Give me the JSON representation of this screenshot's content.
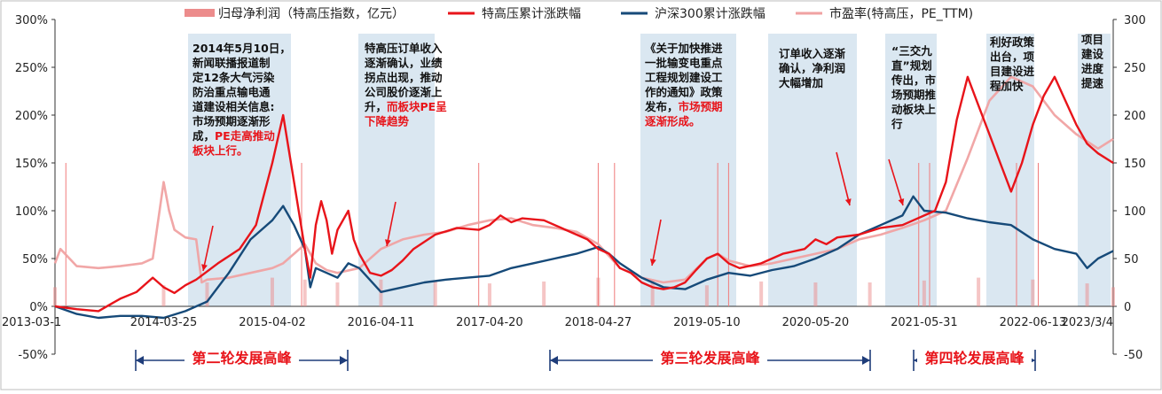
{
  "chart_data": {
    "type": "line",
    "left_axis": {
      "ticks": [
        "300%",
        "250%",
        "200%",
        "150%",
        "100%",
        "50%",
        "0%",
        "-50%"
      ],
      "min": -50,
      "max": 300,
      "unit": "%"
    },
    "right_axis": {
      "ticks": [
        "300",
        "250",
        "200",
        "150",
        "100",
        "50",
        "0",
        "-50"
      ],
      "min": -50,
      "max": 300
    },
    "x_ticks": [
      {
        "label": "2013-03-1",
        "x": 0.0
      },
      {
        "label": "2014-03-25",
        "x": 1.0
      },
      {
        "label": "2015-04-02",
        "x": 2.0
      },
      {
        "label": "2016-04-11",
        "x": 3.0
      },
      {
        "label": "2017-04-20",
        "x": 4.0
      },
      {
        "label": "2018-04-27",
        "x": 5.0
      },
      {
        "label": "2019-05-10",
        "x": 6.0
      },
      {
        "label": "2020-05-20",
        "x": 7.0
      },
      {
        "label": "2021-05-31",
        "x": 8.0
      },
      {
        "label": "2022-06-13",
        "x": 9.0
      },
      {
        "label": "2023/3/4",
        "x": 9.74
      }
    ],
    "x_range": [
      0,
      9.74
    ],
    "legend": [
      {
        "name": "归母净利润（特高压指数，亿元）",
        "type": "bar",
        "color": "#ec8c8c"
      },
      {
        "name": "特高压累计涨跌幅",
        "type": "line",
        "color": "#e8141a"
      },
      {
        "name": "沪深300累计涨跌幅",
        "type": "line",
        "color": "#164a79"
      },
      {
        "name": "市盈率(特高压，PE_TTM)",
        "type": "line",
        "color": "#f0a2a2"
      }
    ],
    "series": [
      {
        "name": "特高压累计涨跌幅",
        "axis": "left",
        "color": "#e8141a",
        "x": [
          0,
          0.2,
          0.4,
          0.6,
          0.75,
          0.9,
          1.0,
          1.1,
          1.2,
          1.3,
          1.5,
          1.7,
          1.85,
          2.0,
          2.1,
          2.2,
          2.3,
          2.35,
          2.4,
          2.45,
          2.5,
          2.55,
          2.6,
          2.7,
          2.75,
          2.8,
          2.9,
          3.0,
          3.1,
          3.2,
          3.3,
          3.5,
          3.7,
          3.9,
          4.0,
          4.1,
          4.2,
          4.3,
          4.5,
          4.7,
          4.9,
          5.0,
          5.1,
          5.2,
          5.3,
          5.4,
          5.5,
          5.6,
          5.7,
          5.8,
          5.9,
          6.0,
          6.1,
          6.2,
          6.3,
          6.5,
          6.7,
          6.9,
          7.0,
          7.1,
          7.2,
          7.4,
          7.6,
          7.8,
          7.9,
          8.0,
          8.1,
          8.2,
          8.3,
          8.4,
          8.5,
          8.6,
          8.7,
          8.8,
          8.9,
          9.0,
          9.1,
          9.2,
          9.3,
          9.4,
          9.5,
          9.6,
          9.74
        ],
        "y": [
          0,
          -3,
          -5,
          8,
          15,
          30,
          20,
          14,
          22,
          28,
          45,
          60,
          85,
          150,
          200,
          130,
          60,
          30,
          85,
          110,
          90,
          55,
          80,
          100,
          70,
          55,
          35,
          32,
          38,
          48,
          60,
          75,
          82,
          80,
          85,
          95,
          88,
          92,
          90,
          80,
          70,
          60,
          55,
          40,
          35,
          25,
          20,
          18,
          20,
          25,
          38,
          50,
          55,
          45,
          40,
          45,
          55,
          60,
          70,
          65,
          72,
          75,
          82,
          85,
          90,
          95,
          100,
          130,
          195,
          240,
          210,
          180,
          150,
          120,
          150,
          190,
          220,
          240,
          215,
          190,
          170,
          160,
          150
        ]
      },
      {
        "name": "沪深300累计涨跌幅",
        "axis": "left",
        "color": "#164a79",
        "x": [
          0,
          0.2,
          0.4,
          0.6,
          0.8,
          1.0,
          1.2,
          1.4,
          1.6,
          1.8,
          2.0,
          2.1,
          2.2,
          2.3,
          2.35,
          2.4,
          2.5,
          2.6,
          2.7,
          2.8,
          3.0,
          3.2,
          3.4,
          3.6,
          3.8,
          4.0,
          4.2,
          4.4,
          4.6,
          4.8,
          5.0,
          5.1,
          5.2,
          5.4,
          5.6,
          5.8,
          6.0,
          6.2,
          6.4,
          6.6,
          6.8,
          7.0,
          7.2,
          7.4,
          7.6,
          7.8,
          7.9,
          8.0,
          8.2,
          8.4,
          8.6,
          8.8,
          9.0,
          9.2,
          9.4,
          9.5,
          9.6,
          9.74
        ],
        "y": [
          0,
          -8,
          -12,
          -10,
          -10,
          -12,
          -5,
          5,
          35,
          70,
          90,
          105,
          85,
          60,
          20,
          40,
          35,
          30,
          45,
          40,
          15,
          20,
          25,
          28,
          30,
          32,
          40,
          45,
          50,
          55,
          62,
          55,
          45,
          30,
          20,
          18,
          28,
          35,
          32,
          38,
          42,
          50,
          60,
          75,
          85,
          95,
          115,
          100,
          98,
          92,
          88,
          85,
          70,
          60,
          55,
          40,
          50,
          58
        ]
      },
      {
        "name": "市盈率(特高压，PE_TTM)",
        "axis": "right",
        "color": "#f0a2a2",
        "x": [
          0,
          0.05,
          0.2,
          0.4,
          0.6,
          0.8,
          0.9,
          1.0,
          1.05,
          1.1,
          1.2,
          1.3,
          1.35,
          1.4,
          1.6,
          1.8,
          2.0,
          2.1,
          2.2,
          2.3,
          2.4,
          2.5,
          2.6,
          2.8,
          3.0,
          3.2,
          3.4,
          3.6,
          3.8,
          4.0,
          4.2,
          4.4,
          4.6,
          4.8,
          5.0,
          5.2,
          5.4,
          5.6,
          5.8,
          6.0,
          6.1,
          6.2,
          6.4,
          6.6,
          6.8,
          7.0,
          7.2,
          7.4,
          7.6,
          7.8,
          8.0,
          8.2,
          8.4,
          8.6,
          8.8,
          9.0,
          9.2,
          9.4,
          9.6,
          9.74
        ],
        "y": [
          45,
          60,
          42,
          40,
          42,
          45,
          50,
          130,
          100,
          80,
          72,
          70,
          25,
          28,
          30,
          35,
          40,
          45,
          55,
          65,
          45,
          38,
          35,
          40,
          60,
          70,
          75,
          78,
          85,
          90,
          92,
          85,
          82,
          78,
          65,
          40,
          30,
          25,
          28,
          50,
          55,
          48,
          42,
          45,
          50,
          55,
          60,
          70,
          75,
          82,
          90,
          100,
          155,
          215,
          240,
          230,
          200,
          180,
          165,
          175
        ]
      },
      {
        "name": "归母净利润（特高压指数，亿元）",
        "axis": "right",
        "color": "#ec8c8c",
        "x": [
          0,
          1.0,
          1.4,
          2.0,
          2.3,
          2.6,
          3.0,
          3.5,
          4.0,
          4.5,
          5.0,
          5.5,
          6.0,
          6.5,
          7.0,
          7.5,
          8.0,
          8.5,
          9.0,
          9.5,
          9.74
        ],
        "y": [
          20,
          22,
          25,
          30,
          28,
          25,
          28,
          26,
          24,
          26,
          30,
          28,
          22,
          26,
          25,
          25,
          27,
          30,
          28,
          24,
          20
        ]
      }
    ],
    "spike_x": [
      0.1,
      2.27,
      3.9,
      5.0,
      5.15,
      6.1,
      6.2,
      7.95,
      8.05,
      8.85,
      9.05
    ],
    "shaded_regions": [
      [
        1.25,
        2.35
      ],
      [
        3.4,
        4.05
      ],
      [
        5.8,
        6.95
      ],
      [
        7.25,
        7.95
      ],
      [
        8.15,
        8.95
      ],
      [
        9.3,
        9.6
      ],
      [
        9.7,
        9.9
      ]
    ],
    "annotations": [
      {
        "lines": [
          "2014年5月10日，",
          "新闻联播报道制",
          "定12条大气污染",
          "防治重点输电通",
          "道建设相关信息:",
          "市场预期逐渐形",
          "成，PE走高推动",
          "板块上行。"
        ],
        "highlight": "PE走高推动板块上行。"
      },
      {
        "lines": [
          "特高压订单收入",
          "逐渐确认，业绩",
          "拐点出现，推动",
          "公司股价逐渐上",
          "升，而板块PE呈",
          "下降趋势"
        ],
        "highlight": "而板块PE呈下降趋势"
      },
      {
        "lines": [
          "《关于加快推进",
          "一批输变电重点",
          "工程规划建设工",
          "作的通知》政策",
          "发布，市场预期",
          "逐渐形成。"
        ],
        "highlight": "市场预期逐渐形成"
      },
      {
        "lines": [
          "订单收入逐渐",
          "确认，净利润",
          "大幅增加"
        ],
        "highlight": ""
      },
      {
        "lines": [
          "“三交九",
          "直”规划",
          "传出，市",
          "场预期推",
          "动板块上",
          "行"
        ],
        "highlight": ""
      },
      {
        "lines": [
          "利好政策",
          "出台，项",
          "目建设进",
          "程加快"
        ],
        "highlight": ""
      },
      {
        "lines": [
          "项目",
          "建设",
          "进度",
          "提速"
        ],
        "highlight": ""
      }
    ],
    "peaks": [
      {
        "label": "第二轮发展高峰",
        "range": [
          0.9,
          3.0
        ]
      },
      {
        "label": "第三轮发展高峰",
        "range": [
          5.0,
          8.1
        ]
      },
      {
        "label": "第四轮发展高峰",
        "range": [
          8.45,
          9.74
        ]
      }
    ]
  }
}
